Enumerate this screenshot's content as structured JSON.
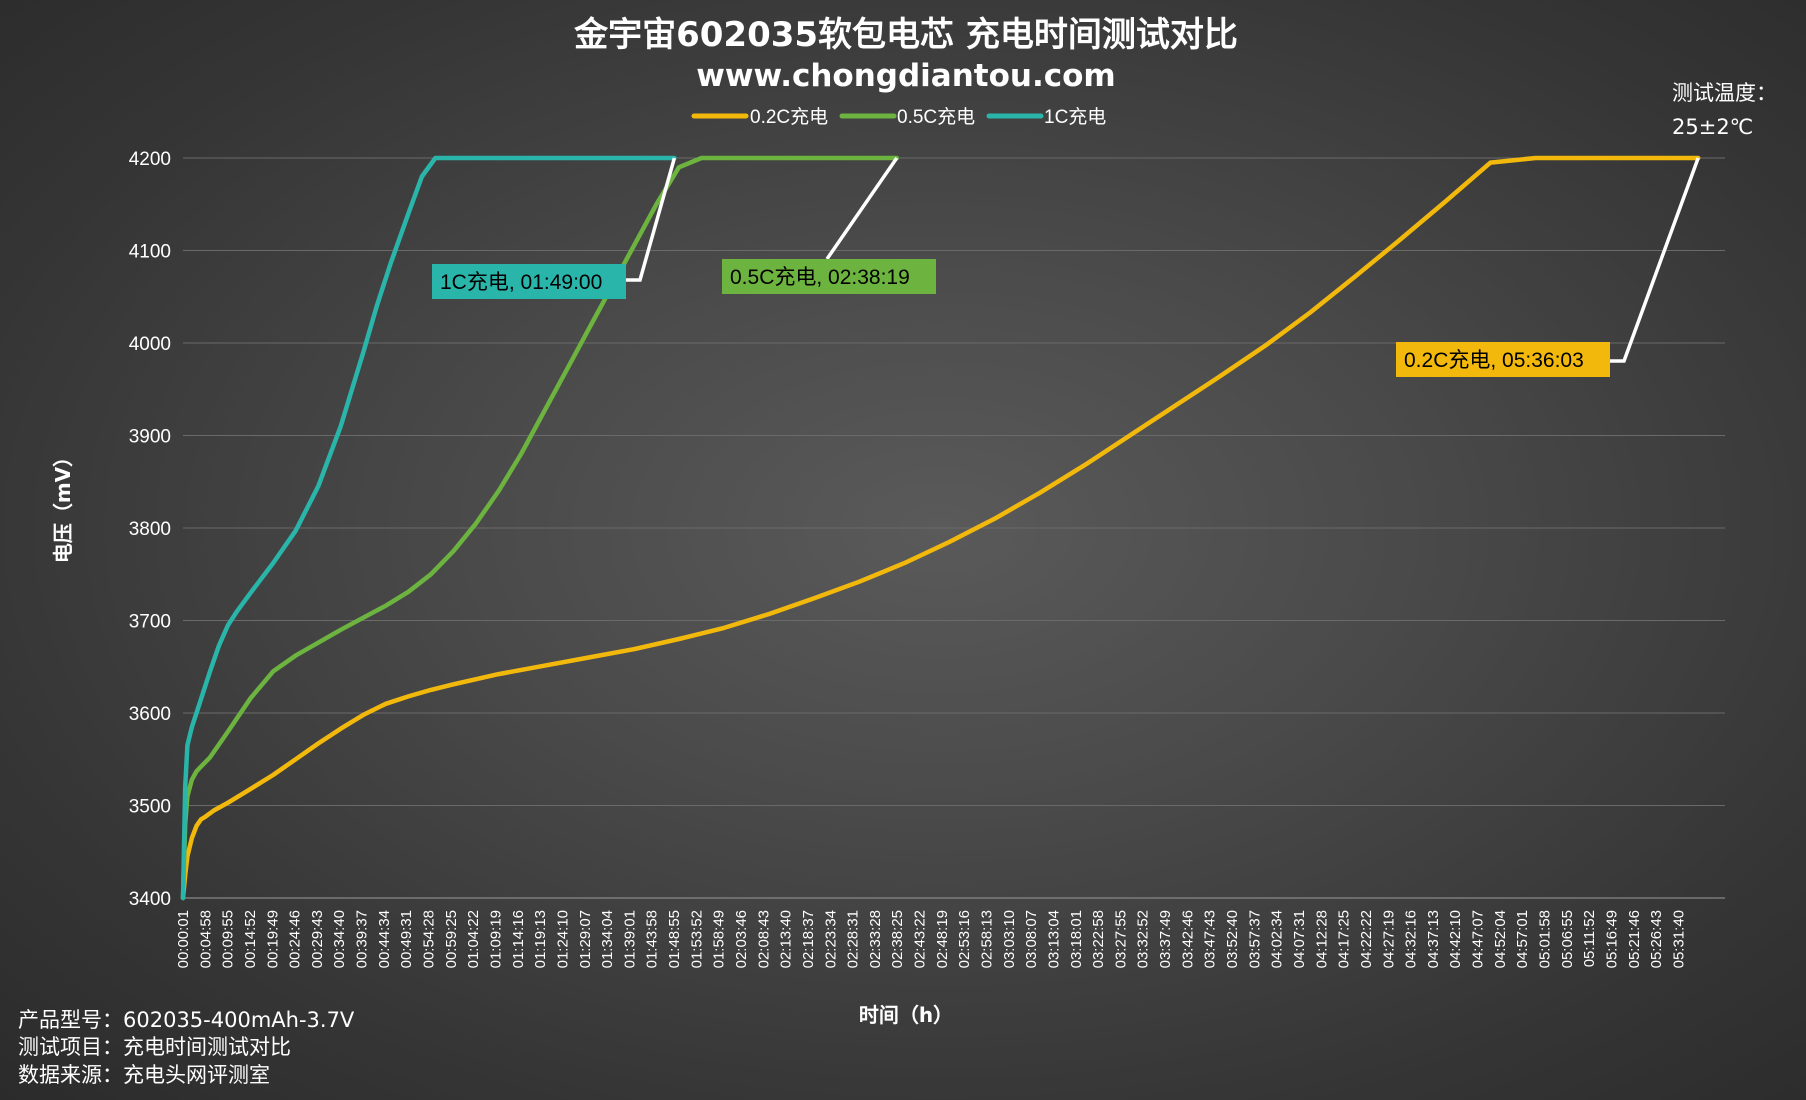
{
  "chart_data": {
    "type": "line",
    "title": "金宇宙602035软包电芯 充电时间测试对比",
    "subtitle": "www.chongdiantou.com",
    "xlabel": "时间（h）",
    "ylabel": "电压（mV）",
    "ylim": [
      3400,
      4200
    ],
    "yticks": [
      3400,
      3500,
      3600,
      3700,
      3800,
      3900,
      4000,
      4100,
      4200
    ],
    "xlim_minutes": [
      0.0167,
      342
    ],
    "xtick_labels": [
      "00:00:01",
      "00:04:58",
      "00:09:55",
      "00:14:52",
      "00:19:49",
      "00:24:46",
      "00:29:43",
      "00:34:40",
      "00:39:37",
      "00:44:34",
      "00:49:31",
      "00:54:28",
      "00:59:25",
      "01:04:22",
      "01:09:19",
      "01:14:16",
      "01:19:13",
      "01:24:10",
      "01:29:07",
      "01:34:04",
      "01:39:01",
      "01:43:58",
      "01:48:55",
      "01:53:52",
      "01:58:49",
      "02:03:46",
      "02:08:43",
      "02:13:40",
      "02:18:37",
      "02:23:34",
      "02:28:31",
      "02:33:28",
      "02:38:25",
      "02:43:22",
      "02:48:19",
      "02:53:16",
      "02:58:13",
      "03:03:10",
      "03:08:07",
      "03:13:04",
      "03:18:01",
      "03:22:58",
      "03:27:55",
      "03:32:52",
      "03:37:49",
      "03:42:46",
      "03:47:43",
      "03:52:40",
      "03:57:37",
      "04:02:34",
      "04:07:31",
      "04:12:28",
      "04:17:25",
      "04:22:22",
      "04:27:19",
      "04:32:16",
      "04:37:13",
      "04:42:10",
      "04:47:07",
      "04:52:04",
      "04:57:01",
      "05:01:58",
      "05:06:55",
      "05:11:52",
      "05:16:49",
      "05:21:46",
      "05:26:43",
      "05:31:40"
    ],
    "grid": true,
    "legend_position": "top-center",
    "series": [
      {
        "name": "0.2C充电",
        "color": "#f2b90c",
        "x_minutes": [
          0,
          0.5,
          1,
          2,
          3,
          4,
          5,
          7,
          10,
          15,
          20,
          25,
          30,
          35,
          40,
          45,
          50,
          55,
          60,
          70,
          80,
          90,
          100,
          110,
          120,
          130,
          140,
          150,
          160,
          170,
          180,
          190,
          200,
          210,
          220,
          230,
          240,
          250,
          260,
          270,
          280,
          290,
          300,
          310,
          312,
          336.05
        ],
        "mv": [
          3400,
          3425,
          3445,
          3465,
          3478,
          3485,
          3488,
          3495,
          3503,
          3518,
          3533,
          3550,
          3567,
          3583,
          3598,
          3610,
          3618,
          3625,
          3631,
          3642,
          3651,
          3660,
          3669,
          3680,
          3692,
          3707,
          3724,
          3742,
          3762,
          3785,
          3810,
          3838,
          3868,
          3900,
          3932,
          3964,
          3997,
          4033,
          4072,
          4112,
          4153,
          4195,
          4200,
          4200,
          4200,
          4200
        ],
        "annotation": "0.2C充电, 05:36:03"
      },
      {
        "name": "0.5C充电",
        "color": "#6cb33f",
        "x_minutes": [
          0,
          0.5,
          1,
          2,
          3,
          4,
          6,
          10,
          15,
          20,
          25,
          30,
          35,
          40,
          45,
          50,
          55,
          60,
          65,
          70,
          75,
          80,
          85,
          90,
          95,
          100,
          105,
          110,
          115,
          118,
          120,
          158.32
        ],
        "mv": [
          3400,
          3480,
          3510,
          3528,
          3537,
          3542,
          3552,
          3580,
          3616,
          3645,
          3662,
          3676,
          3690,
          3703,
          3716,
          3731,
          3750,
          3775,
          3805,
          3840,
          3880,
          3925,
          3970,
          4015,
          4060,
          4105,
          4150,
          4190,
          4200,
          4200,
          4200,
          4200
        ],
        "annotation": "0.5C充电, 02:38:19"
      },
      {
        "name": "1C充电",
        "color": "#2ab5aa",
        "x_minutes": [
          0,
          0.5,
          1,
          2,
          3,
          4,
          6,
          8,
          10,
          12,
          15,
          20,
          25,
          30,
          35,
          40,
          43,
          46,
          50,
          53,
          56,
          58,
          60,
          109
        ],
        "mv": [
          3400,
          3520,
          3565,
          3585,
          3600,
          3615,
          3645,
          3673,
          3695,
          3710,
          3730,
          3762,
          3797,
          3845,
          3910,
          3990,
          4040,
          4085,
          4140,
          4180,
          4200,
          4200,
          4200,
          4200
        ],
        "annotation": "1C充电, 01:49:00"
      }
    ]
  },
  "notes": {
    "temp_label": "测试温度：",
    "temp_value": "25±2℃",
    "model": "产品型号：602035-400mAh-3.7V",
    "item": "测试项目：充电时间测试对比",
    "source": "数据来源：充电头网评测室"
  }
}
